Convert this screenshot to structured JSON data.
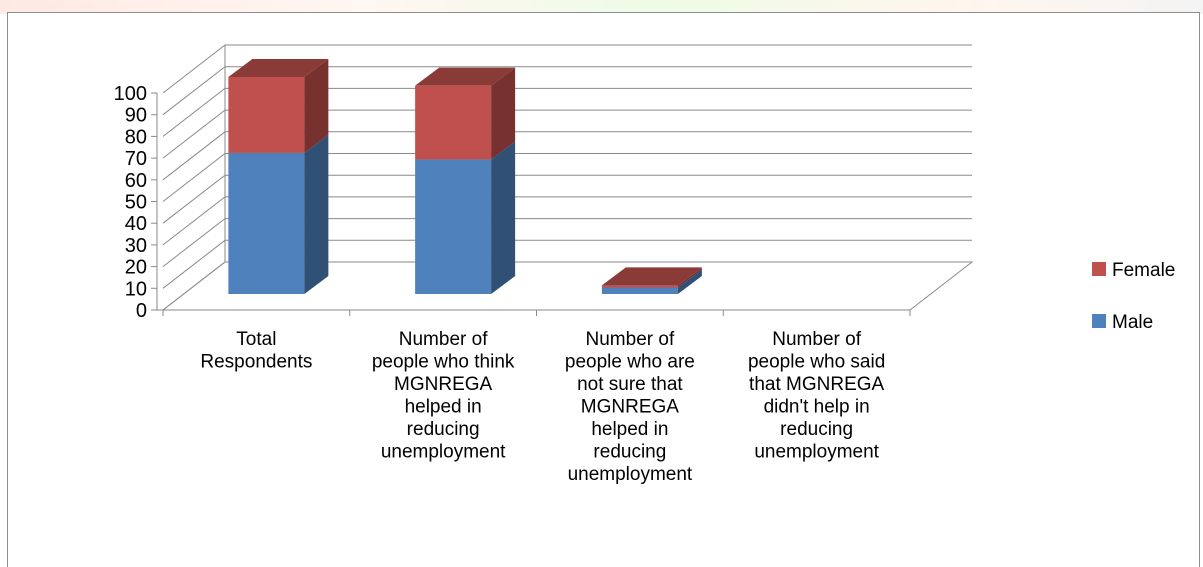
{
  "chart_data": {
    "type": "bar",
    "stacked": true,
    "three_d": true,
    "categories": [
      [
        "Total",
        "Respondents"
      ],
      [
        "Number of",
        "people who think",
        "MGNREGA",
        "helped in",
        "reducing",
        "unemployment"
      ],
      [
        "Number of",
        "people who are",
        "not sure that",
        "MGNREGA",
        "helped in",
        "reducing",
        "unemployment"
      ],
      [
        "Number of",
        "people who said",
        "that MGNREGA",
        "didn't help in",
        "reducing",
        "unemployment"
      ]
    ],
    "series": [
      {
        "name": "Male",
        "values": [
          65,
          62,
          3,
          0
        ],
        "color": "#4f81bd"
      },
      {
        "name": "Female",
        "values": [
          35,
          34,
          1,
          0
        ],
        "color": "#c0504d"
      }
    ],
    "yticks": [
      "0",
      "10",
      "20",
      "30",
      "40",
      "50",
      "60",
      "70",
      "80",
      "90",
      "100"
    ],
    "ylim": [
      0,
      100
    ],
    "legend_position": "right",
    "grid": true
  }
}
